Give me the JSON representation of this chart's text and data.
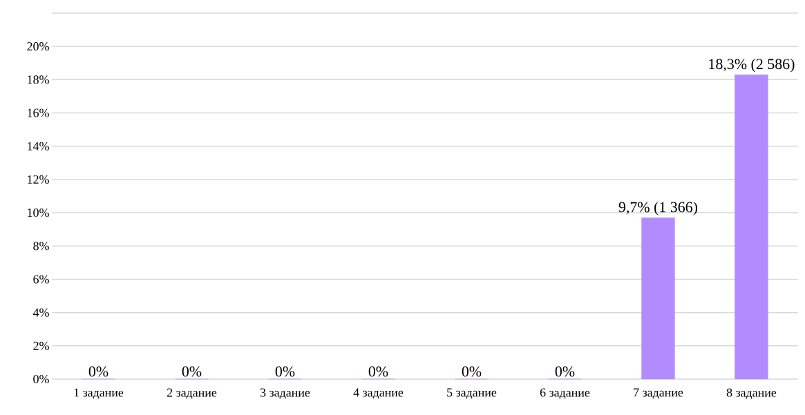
{
  "chart_data": {
    "type": "bar",
    "categories": [
      "1 задание",
      "2 задание",
      "3 задание",
      "4 задание",
      "5 задание",
      "6 задание",
      "7 задание",
      "8 задание"
    ],
    "values": [
      0,
      0,
      0,
      0,
      0,
      0,
      9.7,
      18.3
    ],
    "value_labels": [
      "0%",
      "0%",
      "0%",
      "0%",
      "0%",
      "0%",
      "9,7% (1 366)",
      "18,3% (2 586)"
    ],
    "color": "#b28cff",
    "ylim": [
      0,
      22
    ],
    "yticks": [
      {
        "value": 0,
        "label": "0%"
      },
      {
        "value": 2,
        "label": "2%"
      },
      {
        "value": 4,
        "label": "4%"
      },
      {
        "value": 6,
        "label": "6%"
      },
      {
        "value": 8,
        "label": "8%"
      },
      {
        "value": 10,
        "label": "10%"
      },
      {
        "value": 12,
        "label": "12%"
      },
      {
        "value": 14,
        "label": "14%"
      },
      {
        "value": 16,
        "label": "16%"
      },
      {
        "value": 18,
        "label": "18%"
      },
      {
        "value": 20,
        "label": "20%"
      },
      {
        "value": 22,
        "label": null
      }
    ],
    "grid": "y"
  }
}
